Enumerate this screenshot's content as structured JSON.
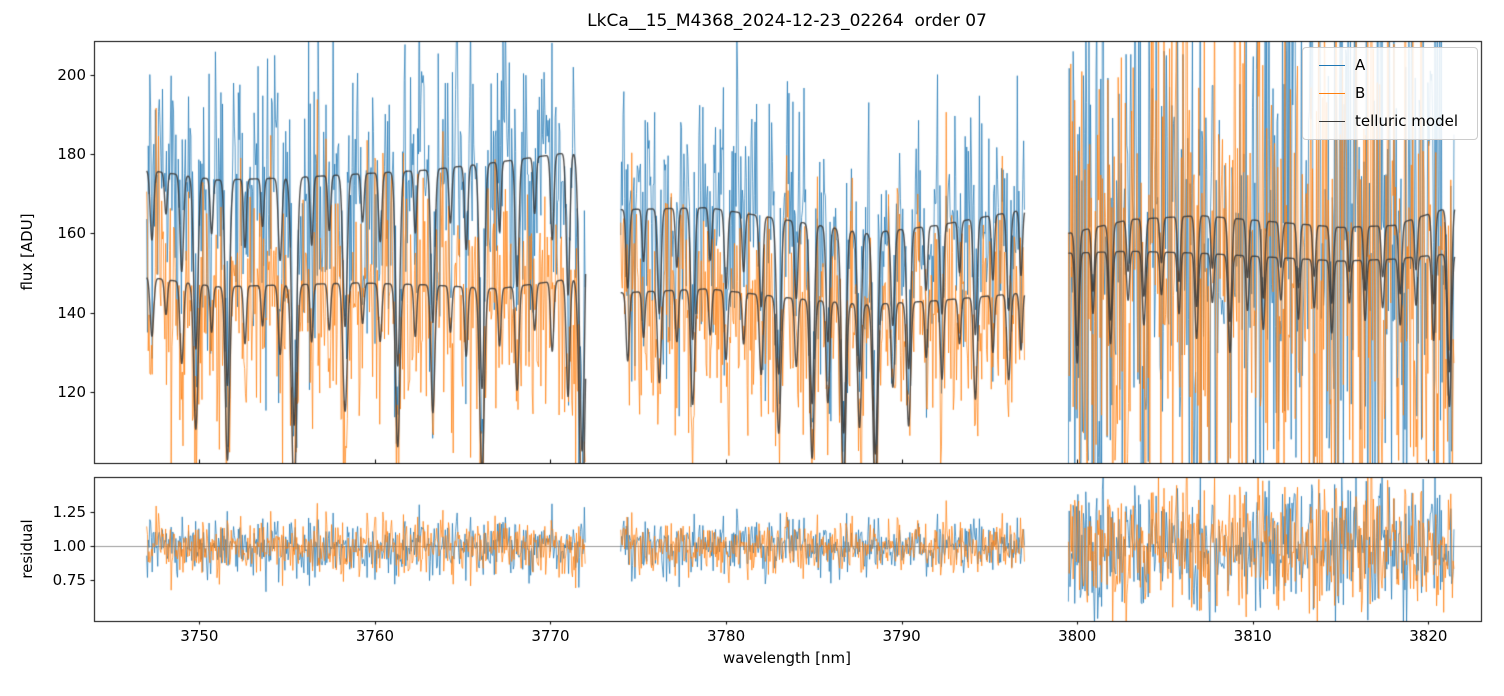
{
  "chart_data": [
    {
      "type": "line",
      "title": "LkCa__15_M4368_2024-12-23_02264  order 07",
      "ylabel": "flux [ADU]",
      "xlim": [
        3744,
        3823
      ],
      "ylim": [
        102,
        208.6
      ],
      "yticks": [
        120,
        140,
        160,
        180,
        200
      ],
      "yticklabels": [
        "120",
        "140",
        "160",
        "180",
        "200"
      ],
      "grid": false,
      "legend": {
        "position": "upper right",
        "entries": [
          "A",
          "B",
          "telluric model"
        ]
      },
      "segments": [
        [
          3747,
          3772
        ],
        [
          3774,
          3797
        ],
        [
          3799.5,
          3821.5
        ]
      ],
      "series": [
        {
          "name": "A",
          "color": "#1f77b4",
          "role": "observed",
          "noise_std": [
            0.105,
            0.095,
            0.24
          ],
          "continuum": [
            [
              3747,
              176
            ],
            [
              3751,
              173.5
            ],
            [
              3755,
              174
            ],
            [
              3759,
              175
            ],
            [
              3763,
              176
            ],
            [
              3767,
              178
            ],
            [
              3772,
              181
            ],
            [
              3774,
              166
            ],
            [
              3779,
              166.5
            ],
            [
              3784,
              163
            ],
            [
              3788,
              160
            ],
            [
              3792,
              162
            ],
            [
              3797,
              166
            ],
            [
              3799.5,
              160
            ],
            [
              3803,
              163.5
            ],
            [
              3807,
              164.5
            ],
            [
              3811,
              163
            ],
            [
              3815,
              161.5
            ],
            [
              3818,
              162
            ],
            [
              3821.5,
              167
            ]
          ]
        },
        {
          "name": "B",
          "color": "#ff7f0e",
          "role": "observed",
          "noise_std": [
            0.115,
            0.1,
            0.24
          ],
          "continuum": [
            [
              3747,
              149
            ],
            [
              3751,
              146.5
            ],
            [
              3755,
              147
            ],
            [
              3759,
              147.5
            ],
            [
              3763,
              147
            ],
            [
              3767,
              146
            ],
            [
              3772,
              149
            ],
            [
              3774,
              145
            ],
            [
              3779,
              146
            ],
            [
              3784,
              143.5
            ],
            [
              3788,
              142
            ],
            [
              3792,
              143
            ],
            [
              3797,
              145
            ],
            [
              3799.5,
              155
            ],
            [
              3803,
              155.5
            ],
            [
              3807,
              155
            ],
            [
              3811,
              154
            ],
            [
              3815,
              153
            ],
            [
              3818,
              153.5
            ],
            [
              3821.5,
              155
            ]
          ]
        },
        {
          "name": "telluric model",
          "color": "#3a3a3a",
          "role": "model",
          "applies_to": [
            "A",
            "B"
          ]
        }
      ],
      "telluric_lines": [
        [
          3747.3,
          0.1,
          0.1
        ],
        [
          3748.1,
          0.06,
          0.08
        ],
        [
          3749.0,
          0.14,
          0.1
        ],
        [
          3749.8,
          0.25,
          0.12
        ],
        [
          3750.7,
          0.08,
          0.08
        ],
        [
          3751.6,
          0.3,
          0.12
        ],
        [
          3752.6,
          0.1,
          0.08
        ],
        [
          3753.6,
          0.07,
          0.08
        ],
        [
          3754.6,
          0.12,
          0.1
        ],
        [
          3755.4,
          0.36,
          0.14
        ],
        [
          3756.4,
          0.1,
          0.08
        ],
        [
          3757.4,
          0.08,
          0.08
        ],
        [
          3758.3,
          0.22,
          0.12
        ],
        [
          3759.3,
          0.07,
          0.08
        ],
        [
          3760.3,
          0.1,
          0.09
        ],
        [
          3761.3,
          0.28,
          0.12
        ],
        [
          3762.3,
          0.09,
          0.08
        ],
        [
          3763.3,
          0.22,
          0.11
        ],
        [
          3764.3,
          0.08,
          0.08
        ],
        [
          3765.2,
          0.12,
          0.09
        ],
        [
          3766.1,
          0.32,
          0.13
        ],
        [
          3767.1,
          0.1,
          0.08
        ],
        [
          3768.1,
          0.18,
          0.1
        ],
        [
          3769.1,
          0.08,
          0.08
        ],
        [
          3770.1,
          0.12,
          0.09
        ],
        [
          3771.0,
          0.2,
          0.1
        ],
        [
          3771.8,
          0.42,
          0.15
        ],
        [
          3774.4,
          0.12,
          0.09
        ],
        [
          3775.3,
          0.08,
          0.08
        ],
        [
          3776.2,
          0.16,
          0.1
        ],
        [
          3777.2,
          0.09,
          0.08
        ],
        [
          3778.1,
          0.2,
          0.11
        ],
        [
          3779.1,
          0.08,
          0.08
        ],
        [
          3780.0,
          0.12,
          0.09
        ],
        [
          3781.0,
          0.09,
          0.08
        ],
        [
          3782.0,
          0.14,
          0.1
        ],
        [
          3783.0,
          0.24,
          0.12
        ],
        [
          3784.0,
          0.12,
          0.09
        ],
        [
          3784.9,
          0.28,
          0.12
        ],
        [
          3785.8,
          0.18,
          0.1
        ],
        [
          3786.7,
          0.32,
          0.13
        ],
        [
          3787.6,
          0.22,
          0.11
        ],
        [
          3788.5,
          0.35,
          0.13
        ],
        [
          3789.5,
          0.15,
          0.1
        ],
        [
          3790.4,
          0.22,
          0.11
        ],
        [
          3791.4,
          0.1,
          0.08
        ],
        [
          3792.3,
          0.14,
          0.09
        ],
        [
          3793.3,
          0.08,
          0.08
        ],
        [
          3794.2,
          0.18,
          0.1
        ],
        [
          3795.2,
          0.1,
          0.08
        ],
        [
          3796.1,
          0.15,
          0.1
        ],
        [
          3796.8,
          0.1,
          0.08
        ],
        [
          3800.0,
          0.18,
          0.1
        ],
        [
          3800.9,
          0.1,
          0.08
        ],
        [
          3801.9,
          0.15,
          0.1
        ],
        [
          3802.9,
          0.08,
          0.08
        ],
        [
          3803.8,
          0.12,
          0.09
        ],
        [
          3804.8,
          0.07,
          0.08
        ],
        [
          3805.8,
          0.1,
          0.08
        ],
        [
          3806.8,
          0.14,
          0.09
        ],
        [
          3807.7,
          0.08,
          0.08
        ],
        [
          3808.7,
          0.16,
          0.1
        ],
        [
          3809.7,
          0.09,
          0.08
        ],
        [
          3810.6,
          0.12,
          0.09
        ],
        [
          3811.6,
          0.07,
          0.08
        ],
        [
          3812.6,
          0.1,
          0.08
        ],
        [
          3813.5,
          0.08,
          0.08
        ],
        [
          3814.5,
          0.12,
          0.09
        ],
        [
          3815.5,
          0.07,
          0.08
        ],
        [
          3816.4,
          0.1,
          0.08
        ],
        [
          3817.4,
          0.08,
          0.08
        ],
        [
          3818.4,
          0.11,
          0.09
        ],
        [
          3819.3,
          0.08,
          0.08
        ],
        [
          3820.3,
          0.14,
          0.09
        ],
        [
          3821.2,
          0.25,
          0.11
        ]
      ]
    },
    {
      "type": "line",
      "ylabel": "residual",
      "xlabel": "wavelength [nm]",
      "xlim": [
        3744,
        3823
      ],
      "ylim": [
        0.45,
        1.51
      ],
      "yticks": [
        0.75,
        1.0,
        1.25
      ],
      "yticklabels": [
        "0.75",
        "1.00",
        "1.25"
      ],
      "xticks": [
        3750,
        3760,
        3770,
        3780,
        3790,
        3800,
        3810,
        3820
      ],
      "xticklabels": [
        "3750",
        "3760",
        "3770",
        "3780",
        "3790",
        "3800",
        "3810",
        "3820"
      ],
      "grid": false,
      "hline": {
        "y": 1.0,
        "color": "#808080"
      },
      "series": [
        {
          "name": "A",
          "color": "#1f77b4"
        },
        {
          "name": "B",
          "color": "#ff7f0e"
        }
      ]
    }
  ]
}
